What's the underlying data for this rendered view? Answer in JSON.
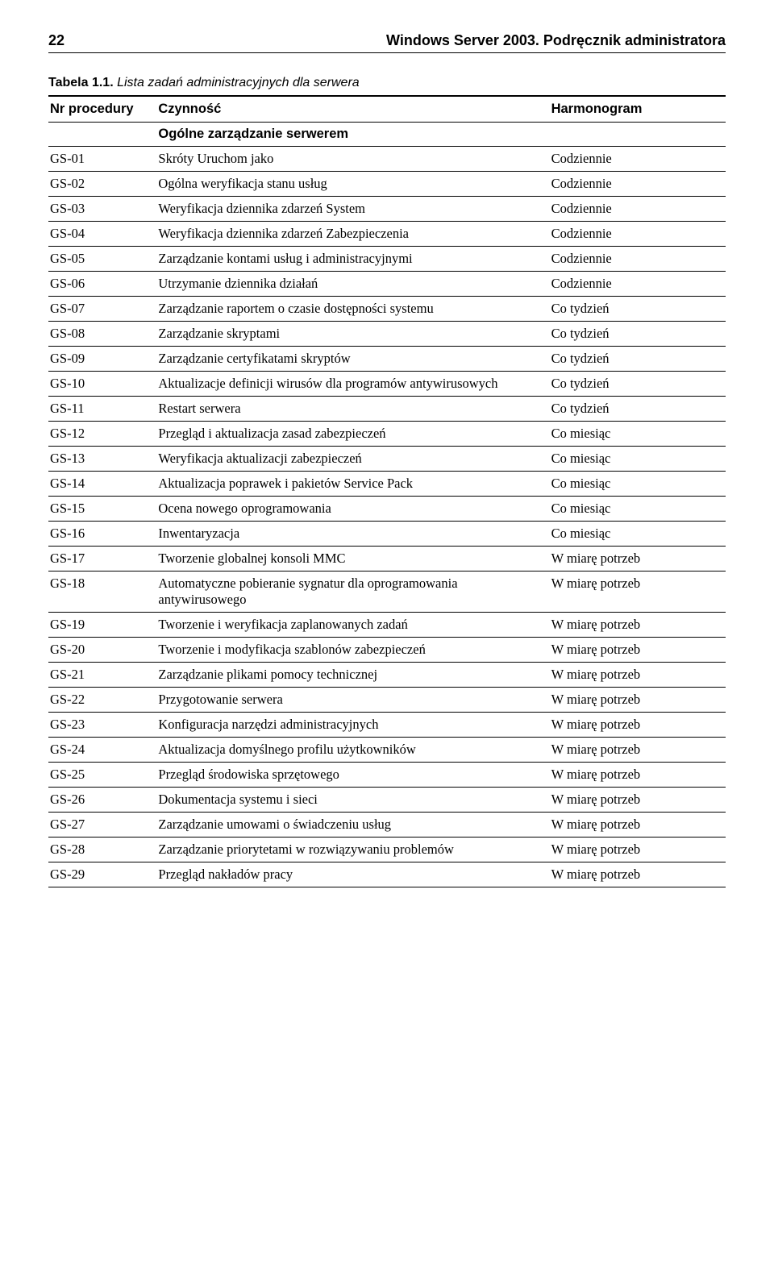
{
  "page": {
    "number": "22",
    "book_title": "Windows Server 2003. Podręcznik administratora"
  },
  "table": {
    "caption_label": "Tabela 1.1.",
    "caption_text": "Lista zadań administracyjnych dla serwera",
    "columns": [
      "Nr procedury",
      "Czynność",
      "Harmonogram"
    ],
    "section_title": "Ogólne zarządzanie serwerem",
    "rows": [
      [
        "GS-01",
        "Skróty Uruchom jako",
        "Codziennie"
      ],
      [
        "GS-02",
        "Ogólna weryfikacja stanu usług",
        "Codziennie"
      ],
      [
        "GS-03",
        "Weryfikacja dziennika zdarzeń System",
        "Codziennie"
      ],
      [
        "GS-04",
        "Weryfikacja dziennika zdarzeń Zabezpieczenia",
        "Codziennie"
      ],
      [
        "GS-05",
        "Zarządzanie kontami usług i administracyjnymi",
        "Codziennie"
      ],
      [
        "GS-06",
        "Utrzymanie dziennika działań",
        "Codziennie"
      ],
      [
        "GS-07",
        "Zarządzanie raportem o czasie dostępności systemu",
        "Co tydzień"
      ],
      [
        "GS-08",
        "Zarządzanie skryptami",
        "Co tydzień"
      ],
      [
        "GS-09",
        "Zarządzanie certyfikatami skryptów",
        "Co tydzień"
      ],
      [
        "GS-10",
        "Aktualizacje definicji wirusów dla programów antywirusowych",
        "Co tydzień"
      ],
      [
        "GS-11",
        "Restart serwera",
        "Co tydzień"
      ],
      [
        "GS-12",
        "Przegląd i aktualizacja zasad zabezpieczeń",
        "Co miesiąc"
      ],
      [
        "GS-13",
        "Weryfikacja aktualizacji zabezpieczeń",
        "Co miesiąc"
      ],
      [
        "GS-14",
        "Aktualizacja poprawek i pakietów Service Pack",
        "Co miesiąc"
      ],
      [
        "GS-15",
        "Ocena nowego oprogramowania",
        "Co miesiąc"
      ],
      [
        "GS-16",
        "Inwentaryzacja",
        "Co miesiąc"
      ],
      [
        "GS-17",
        "Tworzenie globalnej konsoli MMC",
        "W miarę potrzeb"
      ],
      [
        "GS-18",
        "Automatyczne pobieranie sygnatur dla oprogramowania antywirusowego",
        "W miarę potrzeb"
      ],
      [
        "GS-19",
        "Tworzenie i weryfikacja zaplanowanych zadań",
        "W miarę potrzeb"
      ],
      [
        "GS-20",
        "Tworzenie i modyfikacja szablonów zabezpieczeń",
        "W miarę potrzeb"
      ],
      [
        "GS-21",
        "Zarządzanie plikami pomocy technicznej",
        "W miarę potrzeb"
      ],
      [
        "GS-22",
        "Przygotowanie serwera",
        "W miarę potrzeb"
      ],
      [
        "GS-23",
        "Konfiguracja narzędzi administracyjnych",
        "W miarę potrzeb"
      ],
      [
        "GS-24",
        "Aktualizacja domyślnego profilu użytkowników",
        "W miarę potrzeb"
      ],
      [
        "GS-25",
        "Przegląd środowiska sprzętowego",
        "W miarę potrzeb"
      ],
      [
        "GS-26",
        "Dokumentacja systemu i sieci",
        "W miarę potrzeb"
      ],
      [
        "GS-27",
        "Zarządzanie umowami o świadczeniu usług",
        "W miarę potrzeb"
      ],
      [
        "GS-28",
        "Zarządzanie priorytetami w rozwiązywaniu problemów",
        "W miarę potrzeb"
      ],
      [
        "GS-29",
        "Przegląd nakładów pracy",
        "W miarę potrzeb"
      ]
    ]
  }
}
